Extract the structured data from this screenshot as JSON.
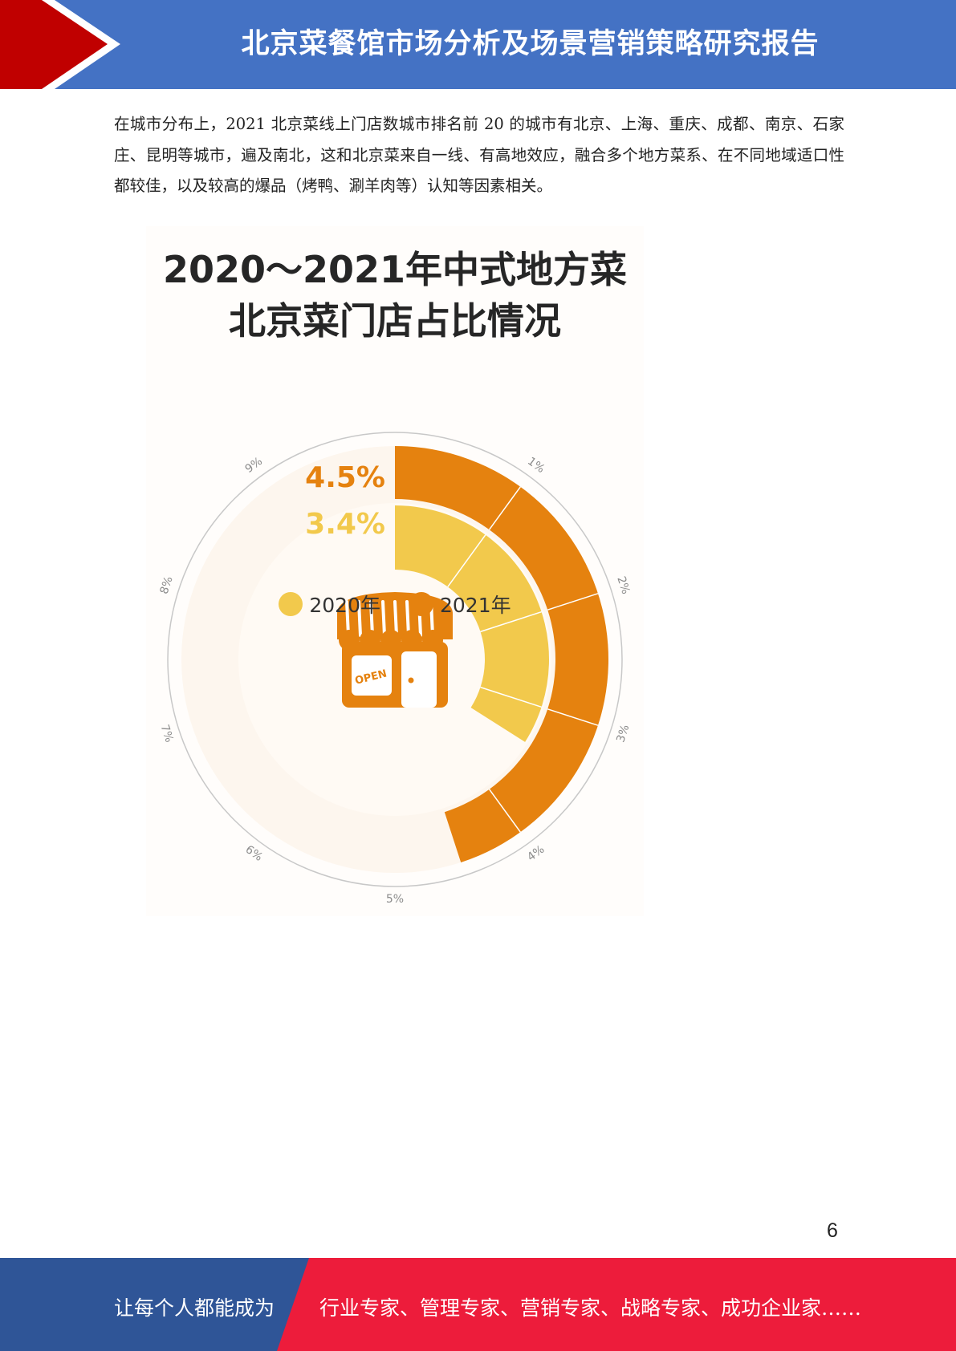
{
  "header": {
    "title": "北京菜餐馆市场分析及场景营销策略研究报告",
    "accent_color": "#c00000",
    "bar_color": "#4472c4"
  },
  "body": {
    "paragraph": "在城市分布上，2021 北京菜线上门店数城市排名前 20 的城市有北京、上海、重庆、成都、南京、石家庄、昆明等城市，遍及南北，这和北京菜来自一线、有高地效应，融合多个地方菜系、在不同地域适口性都较佳，以及较高的爆品（烤鸭、涮羊肉等）认知等因素相关。"
  },
  "chart_data": {
    "type": "radial-bar",
    "title_line1": "2020～2021年中式地方菜",
    "title_line2": "北京菜门店占比情况",
    "scale_max": 10,
    "tick_labels": [
      "1%",
      "2%",
      "3%",
      "4%",
      "5%",
      "6%",
      "7%",
      "8%",
      "9%"
    ],
    "series": [
      {
        "name": "2020年",
        "value": 3.4,
        "label": "3.4%",
        "color": "#f2c94c"
      },
      {
        "name": "2021年",
        "value": 4.5,
        "label": "4.5%",
        "color": "#e5820f"
      }
    ],
    "center_icon": "store-open-icon",
    "center_icon_text": "OPEN"
  },
  "page": {
    "number": "6"
  },
  "footer": {
    "left_text": "让每个人都能成为",
    "right_text": "行业专家、管理专家、营销专家、战略专家、成功企业家……",
    "left_color": "#2f5597",
    "right_color": "#ed1c3b"
  }
}
